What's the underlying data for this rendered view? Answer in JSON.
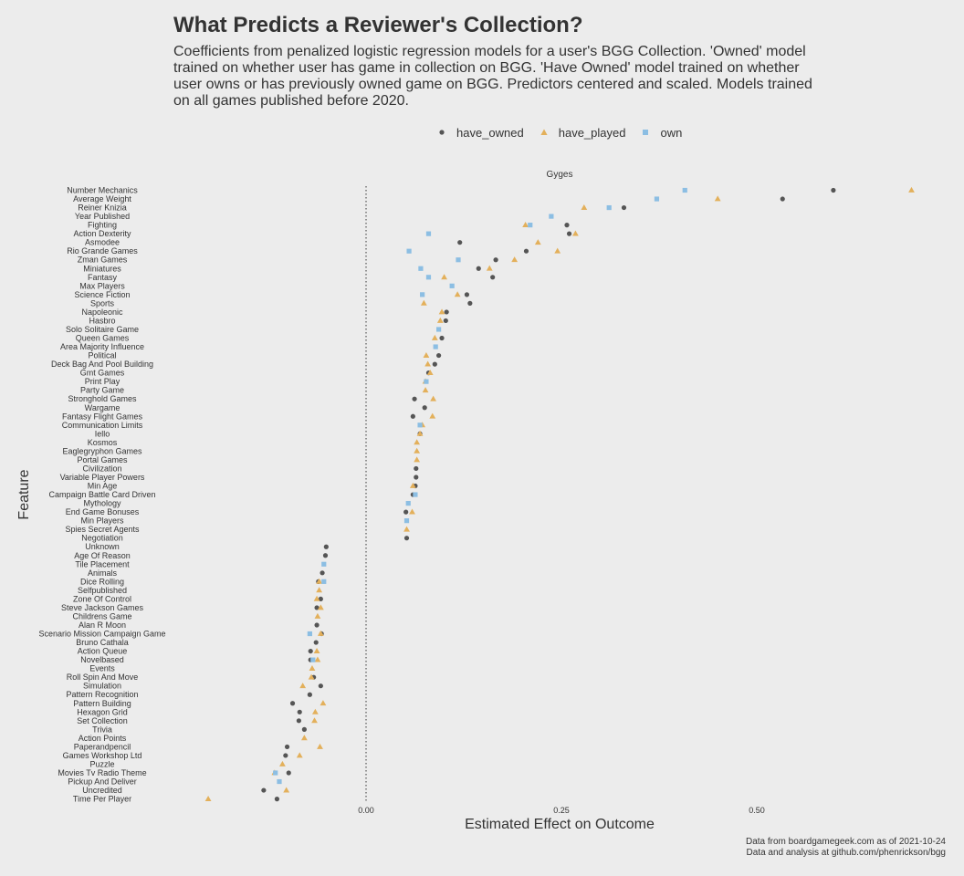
{
  "title": "What Predicts a Reviewer's Collection?",
  "subtitle": "Coefficients from penalized logistic regression models for a user's BGG Collection. 'Owned' model trained on whether user has game in collection on BGG. 'Have Owned' model trained on whether user owns or has previously owned game on BGG. Predictors centered and scaled. Models trained on all games published before 2020.",
  "caption_line1": "Data from boardgamegeek.com as of 2021-10-24",
  "caption_line2": "Data and analysis at github.com/phenrickson/bgg",
  "colors": {
    "have_owned": "#555555",
    "have_played": "#e3b05b",
    "own": "#8cbee3",
    "background": "#ececec",
    "text": "#333333"
  },
  "chart_data": {
    "type": "scatter",
    "panel_title": "Gyges",
    "xlabel": "Estimated Effect on Outcome",
    "ylabel": "Feature",
    "xlim": [
      -0.235,
      0.74
    ],
    "x_ticks": [
      0.0,
      0.25,
      0.5
    ],
    "x_tick_labels": [
      "0.00",
      "0.25",
      "0.50"
    ],
    "reference_line": 0,
    "grid": false,
    "legend_position": "top",
    "series_names": [
      "have_owned",
      "have_played",
      "own"
    ],
    "features": [
      "Number Mechanics",
      "Average Weight",
      "Reiner Knizia",
      "Year Published",
      "Fighting",
      "Action Dexterity",
      "Asmodee",
      "Rio Grande Games",
      "Zman Games",
      "Miniatures",
      "Fantasy",
      "Max Players",
      "Science Fiction",
      "Sports",
      "Napoleonic",
      "Hasbro",
      "Solo Solitaire Game",
      "Queen Games",
      "Area Majority Influence",
      "Political",
      "Deck Bag And Pool Building",
      "Gmt Games",
      "Print Play",
      "Party Game",
      "Stronghold Games",
      "Wargame",
      "Fantasy Flight Games",
      "Communication Limits",
      "Iello",
      "Kosmos",
      "Eaglegryphon Games",
      "Portal Games",
      "Civilization",
      "Variable Player Powers",
      "Min Age",
      "Campaign Battle Card Driven",
      "Mythology",
      "End Game Bonuses",
      "Min Players",
      "Spies Secret Agents",
      "Negotiation",
      "Unknown",
      "Age Of Reason",
      "Tile Placement",
      "Animals",
      "Dice Rolling",
      "Selfpublished",
      "Zone Of Control",
      "Steve Jackson Games",
      "Childrens Game",
      "Alan R Moon",
      "Scenario Mission Campaign Game",
      "Bruno Cathala",
      "Action Queue",
      "Novelbased",
      "Events",
      "Roll Spin And Move",
      "Simulation",
      "Pattern Recognition",
      "Pattern Building",
      "Hexagon Grid",
      "Set Collection",
      "Trivia",
      "Action Points",
      "Paperandpencil",
      "Games Workshop Ltd",
      "Puzzle",
      "Movies Tv Radio Theme",
      "Pickup And Deliver",
      "Uncredited",
      "Time Per Player"
    ],
    "points": {
      "have_owned": [
        [
          "Number Mechanics",
          0.598
        ],
        [
          "Average Weight",
          0.533
        ],
        [
          "Reiner Knizia",
          0.33
        ],
        [
          "Fighting",
          0.257
        ],
        [
          "Action Dexterity",
          0.26
        ],
        [
          "Asmodee",
          0.12
        ],
        [
          "Rio Grande Games",
          0.205
        ],
        [
          "Zman Games",
          0.166
        ],
        [
          "Miniatures",
          0.144
        ],
        [
          "Fantasy",
          0.162
        ],
        [
          "Science Fiction",
          0.129
        ],
        [
          "Sports",
          0.133
        ],
        [
          "Napoleonic",
          0.103
        ],
        [
          "Hasbro",
          0.102
        ],
        [
          "Queen Games",
          0.097
        ],
        [
          "Political",
          0.093
        ],
        [
          "Deck Bag And Pool Building",
          0.088
        ],
        [
          "Gmt Games",
          0.08
        ],
        [
          "Stronghold Games",
          0.062
        ],
        [
          "Wargame",
          0.075
        ],
        [
          "Fantasy Flight Games",
          0.06
        ],
        [
          "Iello",
          0.069
        ],
        [
          "Civilization",
          0.064
        ],
        [
          "Variable Player Powers",
          0.064
        ],
        [
          "Min Age",
          0.063
        ],
        [
          "Campaign Battle Card Driven",
          0.06
        ],
        [
          "End Game Bonuses",
          0.051
        ],
        [
          "Negotiation",
          0.052
        ],
        [
          "Unknown",
          -0.051
        ],
        [
          "Age Of Reason",
          -0.052
        ],
        [
          "Animals",
          -0.056
        ],
        [
          "Dice Rolling",
          -0.061
        ],
        [
          "Zone Of Control",
          -0.058
        ],
        [
          "Steve Jackson Games",
          -0.063
        ],
        [
          "Alan R Moon",
          -0.063
        ],
        [
          "Scenario Mission Campaign Game",
          -0.057
        ],
        [
          "Bruno Cathala",
          -0.064
        ],
        [
          "Action Queue",
          -0.071
        ],
        [
          "Novelbased",
          -0.071
        ],
        [
          "Roll Spin And Move",
          -0.067
        ],
        [
          "Simulation",
          -0.058
        ],
        [
          "Pattern Recognition",
          -0.072
        ],
        [
          "Pattern Building",
          -0.094
        ],
        [
          "Hexagon Grid",
          -0.085
        ],
        [
          "Set Collection",
          -0.086
        ],
        [
          "Trivia",
          -0.079
        ],
        [
          "Paperandpencil",
          -0.101
        ],
        [
          "Games Workshop Ltd",
          -0.103
        ],
        [
          "Movies Tv Radio Theme",
          -0.099
        ],
        [
          "Uncredited",
          -0.131
        ],
        [
          "Time Per Player",
          -0.114
        ]
      ],
      "have_played": [
        [
          "Number Mechanics",
          0.698
        ],
        [
          "Average Weight",
          0.45
        ],
        [
          "Reiner Knizia",
          0.279
        ],
        [
          "Fighting",
          0.204
        ],
        [
          "Action Dexterity",
          0.268
        ],
        [
          "Asmodee",
          0.22
        ],
        [
          "Rio Grande Games",
          0.245
        ],
        [
          "Zman Games",
          0.19
        ],
        [
          "Miniatures",
          0.158
        ],
        [
          "Fantasy",
          0.1
        ],
        [
          "Science Fiction",
          0.117
        ],
        [
          "Sports",
          0.074
        ],
        [
          "Napoleonic",
          0.097
        ],
        [
          "Hasbro",
          0.095
        ],
        [
          "Queen Games",
          0.088
        ],
        [
          "Political",
          0.077
        ],
        [
          "Deck Bag And Pool Building",
          0.079
        ],
        [
          "Gmt Games",
          0.082
        ],
        [
          "Print Play",
          0.076
        ],
        [
          "Party Game",
          0.076
        ],
        [
          "Stronghold Games",
          0.086
        ],
        [
          "Fantasy Flight Games",
          0.085
        ],
        [
          "Communication Limits",
          0.072
        ],
        [
          "Iello",
          0.069
        ],
        [
          "Kosmos",
          0.065
        ],
        [
          "Eaglegryphon Games",
          0.065
        ],
        [
          "Portal Games",
          0.065
        ],
        [
          "Min Age",
          0.06
        ],
        [
          "End Game Bonuses",
          0.059
        ],
        [
          "Spies Secret Agents",
          0.052
        ],
        [
          "Dice Rolling",
          -0.06
        ],
        [
          "Selfpublished",
          -0.06
        ],
        [
          "Zone Of Control",
          -0.063
        ],
        [
          "Steve Jackson Games",
          -0.058
        ],
        [
          "Childrens Game",
          -0.062
        ],
        [
          "Scenario Mission Campaign Game",
          -0.058
        ],
        [
          "Action Queue",
          -0.063
        ],
        [
          "Novelbased",
          -0.062
        ],
        [
          "Events",
          -0.069
        ],
        [
          "Roll Spin And Move",
          -0.07
        ],
        [
          "Simulation",
          -0.081
        ],
        [
          "Pattern Building",
          -0.055
        ],
        [
          "Hexagon Grid",
          -0.065
        ],
        [
          "Set Collection",
          -0.066
        ],
        [
          "Action Points",
          -0.079
        ],
        [
          "Paperandpencil",
          -0.059
        ],
        [
          "Games Workshop Ltd",
          -0.085
        ],
        [
          "Puzzle",
          -0.107
        ],
        [
          "Movies Tv Radio Theme",
          -0.117
        ],
        [
          "Uncredited",
          -0.102
        ],
        [
          "Time Per Player",
          -0.202
        ]
      ],
      "own": [
        [
          "Number Mechanics",
          0.408
        ],
        [
          "Average Weight",
          0.372
        ],
        [
          "Reiner Knizia",
          0.311
        ],
        [
          "Year Published",
          0.237
        ],
        [
          "Fighting",
          0.21
        ],
        [
          "Action Dexterity",
          0.08
        ],
        [
          "Rio Grande Games",
          0.055
        ],
        [
          "Zman Games",
          0.118
        ],
        [
          "Miniatures",
          0.07
        ],
        [
          "Fantasy",
          0.08
        ],
        [
          "Max Players",
          0.11
        ],
        [
          "Science Fiction",
          0.072
        ],
        [
          "Solo Solitaire Game",
          0.093
        ],
        [
          "Area Majority Influence",
          0.089
        ],
        [
          "Print Play",
          0.077
        ],
        [
          "Communication Limits",
          0.069
        ],
        [
          "Campaign Battle Card Driven",
          0.063
        ],
        [
          "Mythology",
          0.054
        ],
        [
          "Min Players",
          0.052
        ],
        [
          "Tile Placement",
          -0.054
        ],
        [
          "Dice Rolling",
          -0.054
        ],
        [
          "Scenario Mission Campaign Game",
          -0.072
        ],
        [
          "Novelbased",
          -0.068
        ],
        [
          "Movies Tv Radio Theme",
          -0.116
        ],
        [
          "Pickup And Deliver",
          -0.111
        ]
      ]
    }
  }
}
